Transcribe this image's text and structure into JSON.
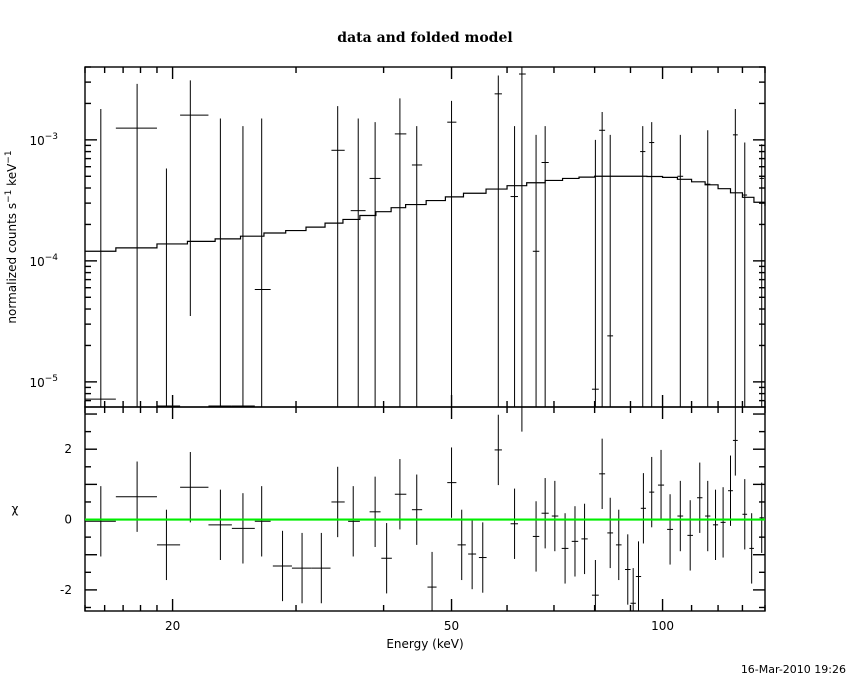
{
  "chart_data": [
    {
      "type": "scatter",
      "title": "data and folded model",
      "ylabel": "normalized counts s^-1 keV^-1",
      "ylabel_parts": {
        "text": "normalized counts s",
        "sup1": "−1",
        "unit": " keV",
        "sup2": "−1"
      },
      "xscale": "log",
      "yscale": "log",
      "xlim": [
        15,
        140
      ],
      "ylim": [
        6.2e-06,
        0.004
      ],
      "yticks": [
        {
          "value": 0.001,
          "base": "10",
          "exp": "−3"
        },
        {
          "value": 0.0001,
          "base": "10",
          "exp": "−4"
        },
        {
          "value": 1e-05,
          "base": "10",
          "exp": "−5"
        }
      ],
      "series": [
        {
          "kind": "data",
          "points": [
            [
              15.8,
              7.2e-06,
              15.0,
              16.6,
              6.2e-06,
              0.0018
            ],
            [
              17.8,
              0.00125,
              16.6,
              19.0,
              6.2e-06,
              0.0029
            ],
            [
              19.6,
              6.2e-06,
              19.0,
              20.5,
              6.2e-06,
              0.00058
            ],
            [
              21.2,
              0.0016,
              20.5,
              22.5,
              3.5e-05,
              0.0031
            ],
            [
              23.4,
              6.2e-06,
              22.5,
              24.3,
              6.2e-06,
              0.0015
            ],
            [
              25.2,
              6.2e-06,
              24.3,
              26.2,
              6.2e-06,
              0.0013
            ],
            [
              26.8,
              5.8e-05,
              26.2,
              27.6,
              6.2e-06,
              0.0015
            ],
            [
              34.4,
              0.00082,
              33.7,
              35.2,
              6.2e-06,
              0.0019
            ],
            [
              36.8,
              0.00026,
              35.9,
              37.7,
              6.2e-06,
              0.0015
            ],
            [
              38.9,
              0.00048,
              38.2,
              39.6,
              6.2e-06,
              0.0014
            ],
            [
              42.2,
              0.00112,
              41.5,
              43.1,
              6.2e-06,
              0.0022
            ],
            [
              44.6,
              0.00062,
              43.9,
              45.4,
              6.2e-06,
              0.0013
            ],
            [
              50.0,
              0.0014,
              49.3,
              50.8,
              6.2e-06,
              0.0021
            ],
            [
              58.3,
              0.0024,
              57.6,
              59.0,
              6.2e-06,
              0.0034
            ],
            [
              61.5,
              0.00034,
              60.7,
              62.2,
              6.2e-06,
              0.0013
            ],
            [
              63.0,
              0.0035,
              62.4,
              63.8,
              6.2e-06,
              0.004
            ],
            [
              66.0,
              0.00012,
              65.3,
              66.7,
              6.2e-06,
              0.0011
            ],
            [
              68.0,
              0.00065,
              67.2,
              68.8,
              6.2e-06,
              0.0013
            ],
            [
              80.2,
              8.7e-06,
              79.3,
              81.1,
              6.2e-06,
              0.001
            ],
            [
              82.0,
              0.0012,
              81.2,
              82.8,
              6.2e-06,
              0.0017
            ],
            [
              84.2,
              2.4e-05,
              83.4,
              85.0,
              6.2e-06,
              0.0011
            ],
            [
              93.7,
              0.0008,
              92.9,
              94.5,
              6.2e-06,
              0.0013
            ],
            [
              96.5,
              0.00095,
              95.7,
              97.3,
              6.2e-06,
              0.0014
            ],
            [
              106.0,
              0.0005,
              105.0,
              107.0,
              6.2e-06,
              0.0011
            ],
            [
              116.0,
              0.00043,
              115.0,
              117.0,
              6.2e-06,
              0.0012
            ],
            [
              127.0,
              0.0011,
              126.0,
              128.0,
              6.2e-06,
              0.0018
            ],
            [
              131.0,
              0.00035,
              130.0,
              132.0,
              6.2e-06,
              0.00095
            ],
            [
              138.5,
              0.00048,
              137.5,
              139.5,
              6.2e-06,
              0.00092
            ]
          ]
        },
        {
          "kind": "model",
          "steps": [
            [
              15.0,
              0.00012
            ],
            [
              16.6,
              0.000128
            ],
            [
              19.0,
              0.000138
            ],
            [
              21.0,
              0.000145
            ],
            [
              23.0,
              0.000152
            ],
            [
              25.0,
              0.00016
            ],
            [
              27.0,
              0.00017
            ],
            [
              29.0,
              0.000178
            ],
            [
              31.0,
              0.00019
            ],
            [
              33.0,
              0.000205
            ],
            [
              35.0,
              0.00022
            ],
            [
              37.0,
              0.000237
            ],
            [
              39.0,
              0.000255
            ],
            [
              41.0,
              0.000275
            ],
            [
              43.0,
              0.000292
            ],
            [
              46.0,
              0.000315
            ],
            [
              49.0,
              0.000338
            ],
            [
              52.0,
              0.000362
            ],
            [
              56.0,
              0.000392
            ],
            [
              60.0,
              0.000418
            ],
            [
              64.0,
              0.000442
            ],
            [
              68.0,
              0.000462
            ],
            [
              72.0,
              0.00048
            ],
            [
              76.0,
              0.000492
            ],
            [
              80.0,
              0.0005
            ],
            [
              95.0,
              0.000498
            ],
            [
              100.0,
              0.00049
            ],
            [
              105.0,
              0.000472
            ],
            [
              110.0,
              0.00045
            ],
            [
              115.0,
              0.000425
            ],
            [
              120.0,
              0.000395
            ],
            [
              125.0,
              0.000365
            ],
            [
              130.0,
              0.000335
            ],
            [
              135.0,
              0.000305
            ],
            [
              140.0,
              0.000285
            ]
          ]
        }
      ]
    },
    {
      "type": "scatter",
      "ylabel": "χ",
      "xlabel": "Energy (keV)",
      "xscale": "log",
      "xlim": [
        15,
        140
      ],
      "ylim": [
        -2.6,
        3.2
      ],
      "xticks": [
        20,
        50,
        100
      ],
      "yticks": [
        2,
        0,
        -2
      ],
      "zero_line": {
        "value": 0,
        "color": "#00ee00"
      },
      "series": [
        {
          "kind": "residuals",
          "points": [
            [
              15.8,
              -0.05,
              15.0,
              16.6,
              -1.05,
              0.95
            ],
            [
              17.8,
              0.65,
              16.6,
              19.0,
              -0.35,
              1.65
            ],
            [
              19.6,
              -0.72,
              19.0,
              20.5,
              -1.72,
              0.28
            ],
            [
              21.2,
              0.92,
              20.5,
              22.5,
              -0.08,
              1.92
            ],
            [
              23.4,
              -0.15,
              22.5,
              24.3,
              -1.15,
              0.85
            ],
            [
              25.2,
              -0.25,
              24.3,
              26.2,
              -1.25,
              0.75
            ],
            [
              26.8,
              -0.05,
              26.2,
              27.6,
              -1.05,
              0.95
            ],
            [
              28.7,
              -1.32,
              27.8,
              29.6,
              -2.32,
              -0.32
            ],
            [
              30.6,
              -1.38,
              29.6,
              31.6,
              -2.38,
              -0.38
            ],
            [
              32.6,
              -1.38,
              31.6,
              33.6,
              -2.38,
              -0.38
            ],
            [
              34.4,
              0.5,
              33.7,
              35.2,
              -0.5,
              1.5
            ],
            [
              36.2,
              -0.05,
              35.6,
              37.0,
              -1.05,
              0.95
            ],
            [
              38.9,
              0.22,
              38.2,
              39.6,
              -0.78,
              1.22
            ],
            [
              40.4,
              -1.1,
              39.7,
              41.1,
              -2.1,
              -0.1
            ],
            [
              42.2,
              0.72,
              41.5,
              43.1,
              -0.28,
              1.72
            ],
            [
              44.6,
              0.28,
              43.9,
              45.4,
              -0.72,
              1.28
            ],
            [
              46.9,
              -1.92,
              46.2,
              47.6,
              -2.92,
              -0.92
            ],
            [
              50.0,
              1.05,
              49.3,
              50.8,
              0.05,
              2.05
            ],
            [
              51.7,
              -0.72,
              51.0,
              52.4,
              -1.72,
              0.28
            ],
            [
              53.5,
              -0.98,
              52.8,
              54.2,
              -1.98,
              0.02
            ],
            [
              55.4,
              -1.08,
              54.7,
              56.1,
              -2.08,
              -0.08
            ],
            [
              58.3,
              1.98,
              57.6,
              59.0,
              0.98,
              2.98
            ],
            [
              61.5,
              -0.12,
              60.7,
              62.2,
              -1.12,
              0.88
            ],
            [
              63.0,
              3.5,
              62.4,
              63.8,
              2.5,
              4.5
            ],
            [
              66.0,
              -0.48,
              65.3,
              66.7,
              -1.48,
              0.52
            ],
            [
              68.0,
              0.18,
              67.2,
              68.8,
              -0.82,
              1.18
            ],
            [
              70.2,
              0.1,
              69.5,
              71.0,
              -0.9,
              1.1
            ],
            [
              72.6,
              -0.82,
              71.8,
              73.4,
              -1.82,
              0.18
            ],
            [
              75.0,
              -0.62,
              74.2,
              75.8,
              -1.62,
              0.38
            ],
            [
              77.4,
              -0.55,
              76.6,
              78.2,
              -1.55,
              0.45
            ],
            [
              80.2,
              -2.15,
              79.3,
              81.1,
              -3.15,
              -1.15
            ],
            [
              82.0,
              1.3,
              81.2,
              82.8,
              0.3,
              2.3
            ],
            [
              84.2,
              -0.38,
              83.4,
              85.0,
              -1.38,
              0.62
            ],
            [
              86.6,
              -0.72,
              85.8,
              87.4,
              -1.72,
              0.28
            ],
            [
              89.2,
              -1.42,
              88.4,
              90.0,
              -2.42,
              -0.42
            ],
            [
              90.8,
              -2.38,
              90.0,
              91.6,
              -3.38,
              -1.38
            ],
            [
              92.4,
              -1.62,
              91.6,
              93.2,
              -2.62,
              -0.62
            ],
            [
              93.9,
              0.32,
              93.1,
              94.7,
              -0.68,
              1.32
            ],
            [
              96.5,
              0.78,
              95.7,
              97.3,
              -0.22,
              1.78
            ],
            [
              99.5,
              0.98,
              98.5,
              100.5,
              -0.02,
              1.98
            ],
            [
              102.5,
              -0.28,
              101.5,
              103.5,
              -1.28,
              0.72
            ],
            [
              106.0,
              0.1,
              105.0,
              107.0,
              -0.9,
              1.1
            ],
            [
              109.5,
              -0.45,
              108.5,
              110.5,
              -1.45,
              0.55
            ],
            [
              113.0,
              0.62,
              112.0,
              114.0,
              -0.38,
              1.62
            ],
            [
              116.0,
              0.1,
              115.0,
              117.0,
              -0.9,
              1.1
            ],
            [
              119.0,
              -0.15,
              118.0,
              120.0,
              -1.15,
              0.85
            ],
            [
              122.0,
              -0.08,
              121.0,
              123.0,
              -1.08,
              0.92
            ],
            [
              125.0,
              0.82,
              124.0,
              126.0,
              -0.18,
              1.82
            ],
            [
              127.0,
              2.25,
              126.0,
              128.0,
              1.25,
              3.25
            ],
            [
              131.0,
              0.15,
              130.0,
              132.0,
              -0.85,
              1.15
            ],
            [
              134.0,
              -0.82,
              133.0,
              135.0,
              -1.82,
              0.18
            ],
            [
              138.5,
              0.05,
              137.5,
              139.5,
              -0.95,
              1.05
            ]
          ]
        }
      ]
    }
  ],
  "timestamp": "16-Mar-2010 19:26"
}
